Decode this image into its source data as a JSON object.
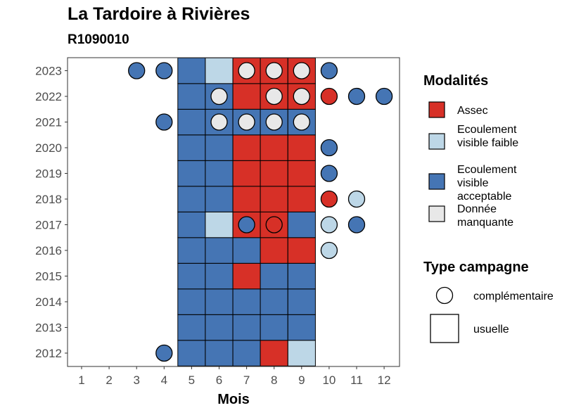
{
  "title": "La Tardoire à Rivières",
  "subtitle": "R1090010",
  "colors": {
    "assec": "#D73027",
    "faible": "#BDD7E7",
    "acceptable": "#4575B4",
    "manquante": "#E8E8E8"
  },
  "legend": {
    "modalites_title": "Modalités",
    "modalites": [
      {
        "key": "assec",
        "label": "Assec"
      },
      {
        "key": "faible",
        "label": "Ecoulement visible faible"
      },
      {
        "key": "acceptable",
        "label": "Ecoulement visible acceptable"
      },
      {
        "key": "manquante",
        "label": "Donnée manquante"
      }
    ],
    "type_title": "Type campagne",
    "types": [
      {
        "shape": "circle",
        "label": "complémentaire"
      },
      {
        "shape": "square",
        "label": "usuelle"
      }
    ]
  },
  "chart_data": {
    "type": "heatmap",
    "xlabel": "Mois",
    "ylabel": "",
    "x": [
      1,
      2,
      3,
      4,
      5,
      6,
      7,
      8,
      9,
      10,
      11,
      12
    ],
    "y": [
      2012,
      2013,
      2014,
      2015,
      2016,
      2017,
      2018,
      2019,
      2020,
      2021,
      2022,
      2023
    ],
    "usuelle": {
      "2012": {
        "5": "acceptable",
        "6": "acceptable",
        "7": "acceptable",
        "8": "assec",
        "9": "faible"
      },
      "2013": {
        "5": "acceptable",
        "6": "acceptable",
        "7": "acceptable",
        "8": "acceptable",
        "9": "acceptable"
      },
      "2014": {
        "5": "acceptable",
        "6": "acceptable",
        "7": "acceptable",
        "8": "acceptable",
        "9": "acceptable"
      },
      "2015": {
        "5": "acceptable",
        "6": "acceptable",
        "7": "assec",
        "8": "acceptable",
        "9": "acceptable"
      },
      "2016": {
        "5": "acceptable",
        "6": "acceptable",
        "7": "acceptable",
        "8": "assec",
        "9": "assec"
      },
      "2017": {
        "5": "acceptable",
        "6": "faible",
        "7": "assec",
        "8": "assec",
        "9": "acceptable"
      },
      "2018": {
        "5": "acceptable",
        "6": "acceptable",
        "7": "assec",
        "8": "assec",
        "9": "assec"
      },
      "2019": {
        "5": "acceptable",
        "6": "acceptable",
        "7": "assec",
        "8": "assec",
        "9": "assec"
      },
      "2020": {
        "5": "acceptable",
        "6": "acceptable",
        "7": "assec",
        "8": "assec",
        "9": "assec"
      },
      "2021": {
        "5": "acceptable",
        "6": "acceptable",
        "7": "acceptable",
        "8": "acceptable",
        "9": "acceptable"
      },
      "2022": {
        "5": "acceptable",
        "6": "acceptable",
        "7": "assec",
        "8": "assec",
        "9": "assec"
      },
      "2023": {
        "5": "acceptable",
        "6": "faible",
        "7": "assec",
        "8": "assec",
        "9": "assec"
      }
    },
    "complementaire": [
      {
        "year": 2012,
        "month": 4,
        "value": "acceptable"
      },
      {
        "year": 2016,
        "month": 10,
        "value": "faible"
      },
      {
        "year": 2017,
        "month": 7,
        "value": "acceptable"
      },
      {
        "year": 2017,
        "month": 8,
        "value": "assec"
      },
      {
        "year": 2017,
        "month": 10,
        "value": "faible"
      },
      {
        "year": 2017,
        "month": 11,
        "value": "acceptable"
      },
      {
        "year": 2018,
        "month": 10,
        "value": "assec"
      },
      {
        "year": 2018,
        "month": 11,
        "value": "faible"
      },
      {
        "year": 2019,
        "month": 10,
        "value": "acceptable"
      },
      {
        "year": 2020,
        "month": 10,
        "value": "acceptable"
      },
      {
        "year": 2021,
        "month": 4,
        "value": "acceptable"
      },
      {
        "year": 2021,
        "month": 6,
        "value": "manquante"
      },
      {
        "year": 2021,
        "month": 7,
        "value": "manquante"
      },
      {
        "year": 2021,
        "month": 8,
        "value": "manquante"
      },
      {
        "year": 2021,
        "month": 9,
        "value": "manquante"
      },
      {
        "year": 2022,
        "month": 6,
        "value": "manquante"
      },
      {
        "year": 2022,
        "month": 8,
        "value": "manquante"
      },
      {
        "year": 2022,
        "month": 9,
        "value": "manquante"
      },
      {
        "year": 2022,
        "month": 10,
        "value": "assec"
      },
      {
        "year": 2022,
        "month": 11,
        "value": "acceptable"
      },
      {
        "year": 2022,
        "month": 12,
        "value": "acceptable"
      },
      {
        "year": 2023,
        "month": 3,
        "value": "acceptable"
      },
      {
        "year": 2023,
        "month": 4,
        "value": "acceptable"
      },
      {
        "year": 2023,
        "month": 7,
        "value": "manquante"
      },
      {
        "year": 2023,
        "month": 8,
        "value": "manquante"
      },
      {
        "year": 2023,
        "month": 9,
        "value": "manquante"
      },
      {
        "year": 2023,
        "month": 10,
        "value": "acceptable"
      }
    ]
  }
}
